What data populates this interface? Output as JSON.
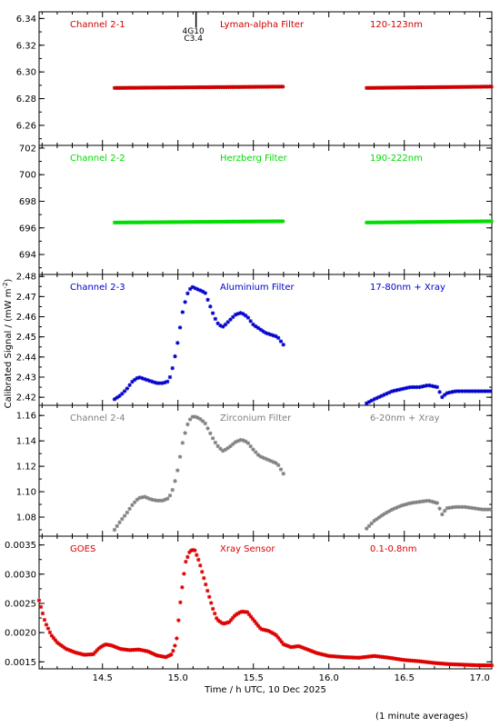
{
  "chart_data": {
    "type": "scatter",
    "xlabel": "Time / h UTC, 10 Dec 2025",
    "ylabel": "Calibrated Signal / (mW m",
    "ylabel_sup": "-2",
    "ylabel_end": ")",
    "xlim": [
      14.08,
      17.08
    ],
    "xticks": [
      14.5,
      15.0,
      15.5,
      16.0,
      16.5,
      17.0
    ],
    "xtick_labels": [
      "14.5",
      "15.0",
      "15.5",
      "16.0",
      "16.5",
      "17.0"
    ],
    "footnote": "(1 minute averages)",
    "annotation": {
      "x": 15.12,
      "label1": "4G10",
      "label2": "C3.4"
    },
    "panels": [
      {
        "channel": "Channel 2-1",
        "filter": "Lyman-alpha Filter",
        "band": "120-123nm",
        "color": "#cc0000",
        "ylim": [
          6.245,
          6.345
        ],
        "yticks": [
          6.26,
          6.28,
          6.3,
          6.32,
          6.34
        ],
        "ytick_labels": [
          "6.26",
          "6.28",
          "6.30",
          "6.32",
          "6.34"
        ],
        "segments": [
          {
            "x": [
              14.58,
              15.7
            ],
            "y": [
              6.288,
              6.289
            ]
          },
          {
            "x": [
              16.25,
              17.08
            ],
            "y": [
              6.288,
              6.289
            ]
          }
        ]
      },
      {
        "channel": "Channel 2-2",
        "filter": "Herzberg Filter",
        "band": "190-222nm",
        "color": "#00dd00",
        "ylim": [
          692.5,
          702.2
        ],
        "yticks": [
          694,
          696,
          698,
          700,
          702
        ],
        "ytick_labels": [
          "694",
          "696",
          "698",
          "700",
          "702"
        ],
        "segments": [
          {
            "x": [
              14.58,
              15.7
            ],
            "y": [
              696.4,
              696.5
            ]
          },
          {
            "x": [
              16.25,
              17.08
            ],
            "y": [
              696.4,
              696.5
            ]
          }
        ]
      },
      {
        "channel": "Channel 2-3",
        "filter": "Aluminium Filter",
        "band": "17-80nm + Xray",
        "color": "#0000cc",
        "ylim": [
          2.416,
          2.481
        ],
        "yticks": [
          2.42,
          2.43,
          2.44,
          2.45,
          2.46,
          2.47,
          2.48
        ],
        "ytick_labels": [
          "2.42",
          "2.43",
          "2.44",
          "2.45",
          "2.46",
          "2.47",
          "2.48"
        ],
        "curve": [
          [
            14.58,
            2.419
          ],
          [
            14.62,
            2.421
          ],
          [
            14.66,
            2.424
          ],
          [
            14.7,
            2.428
          ],
          [
            14.74,
            2.43
          ],
          [
            14.78,
            2.429
          ],
          [
            14.82,
            2.428
          ],
          [
            14.86,
            2.427
          ],
          [
            14.9,
            2.427
          ],
          [
            14.94,
            2.428
          ],
          [
            14.97,
            2.436
          ],
          [
            15.0,
            2.448
          ],
          [
            15.03,
            2.462
          ],
          [
            15.06,
            2.471
          ],
          [
            15.09,
            2.475
          ],
          [
            15.12,
            2.474
          ],
          [
            15.15,
            2.473
          ],
          [
            15.18,
            2.472
          ],
          [
            15.21,
            2.466
          ],
          [
            15.24,
            2.46
          ],
          [
            15.27,
            2.456
          ],
          [
            15.3,
            2.455
          ],
          [
            15.34,
            2.458
          ],
          [
            15.38,
            2.461
          ],
          [
            15.42,
            2.462
          ],
          [
            15.46,
            2.46
          ],
          [
            15.5,
            2.456
          ],
          [
            15.54,
            2.454
          ],
          [
            15.58,
            2.452
          ],
          [
            15.62,
            2.451
          ],
          [
            15.66,
            2.45
          ],
          [
            15.7,
            2.446
          ]
        ],
        "curve2": [
          [
            16.25,
            2.417
          ],
          [
            16.3,
            2.419
          ],
          [
            16.36,
            2.421
          ],
          [
            16.42,
            2.423
          ],
          [
            16.48,
            2.424
          ],
          [
            16.54,
            2.425
          ],
          [
            16.6,
            2.425
          ],
          [
            16.66,
            2.426
          ],
          [
            16.72,
            2.425
          ],
          [
            16.75,
            2.42
          ],
          [
            16.78,
            2.422
          ],
          [
            16.84,
            2.423
          ],
          [
            16.9,
            2.423
          ],
          [
            16.96,
            2.423
          ],
          [
            17.02,
            2.423
          ],
          [
            17.08,
            2.423
          ]
        ]
      },
      {
        "channel": "Channel 2-4",
        "filter": "Zirconium Filter",
        "band": "6-20nm + Xray",
        "color": "#808080",
        "ylim": [
          1.065,
          1.168
        ],
        "yticks": [
          1.08,
          1.1,
          1.12,
          1.14,
          1.16
        ],
        "ytick_labels": [
          "1.08",
          "1.10",
          "1.12",
          "1.14",
          "1.16"
        ],
        "curve": [
          [
            14.58,
            1.07
          ],
          [
            14.62,
            1.077
          ],
          [
            14.66,
            1.083
          ],
          [
            14.7,
            1.09
          ],
          [
            14.74,
            1.095
          ],
          [
            14.78,
            1.096
          ],
          [
            14.82,
            1.094
          ],
          [
            14.86,
            1.093
          ],
          [
            14.9,
            1.093
          ],
          [
            14.94,
            1.095
          ],
          [
            14.97,
            1.103
          ],
          [
            15.0,
            1.118
          ],
          [
            15.03,
            1.138
          ],
          [
            15.06,
            1.152
          ],
          [
            15.09,
            1.159
          ],
          [
            15.12,
            1.159
          ],
          [
            15.15,
            1.157
          ],
          [
            15.18,
            1.154
          ],
          [
            15.21,
            1.147
          ],
          [
            15.24,
            1.14
          ],
          [
            15.27,
            1.135
          ],
          [
            15.3,
            1.132
          ],
          [
            15.34,
            1.135
          ],
          [
            15.38,
            1.139
          ],
          [
            15.42,
            1.141
          ],
          [
            15.46,
            1.139
          ],
          [
            15.5,
            1.133
          ],
          [
            15.54,
            1.128
          ],
          [
            15.58,
            1.126
          ],
          [
            15.62,
            1.124
          ],
          [
            15.66,
            1.122
          ],
          [
            15.7,
            1.114
          ]
        ],
        "curve2": [
          [
            16.25,
            1.071
          ],
          [
            16.3,
            1.077
          ],
          [
            16.36,
            1.082
          ],
          [
            16.42,
            1.086
          ],
          [
            16.48,
            1.089
          ],
          [
            16.54,
            1.091
          ],
          [
            16.6,
            1.092
          ],
          [
            16.66,
            1.093
          ],
          [
            16.72,
            1.091
          ],
          [
            16.75,
            1.082
          ],
          [
            16.78,
            1.087
          ],
          [
            16.84,
            1.088
          ],
          [
            16.9,
            1.088
          ],
          [
            16.96,
            1.087
          ],
          [
            17.02,
            1.086
          ],
          [
            17.08,
            1.086
          ]
        ]
      },
      {
        "channel": "GOES",
        "filter": "Xray Sensor",
        "band": "0.1-0.8nm",
        "color": "#dd0000",
        "ylim": [
          0.00138,
          0.00365
        ],
        "yticks": [
          0.0015,
          0.002,
          0.0025,
          0.003,
          0.0035
        ],
        "ytick_labels": [
          "0.0015",
          "0.0020",
          "0.0025",
          "0.0030",
          "0.0035"
        ],
        "curve": [
          [
            14.08,
            0.00255
          ],
          [
            14.12,
            0.00218
          ],
          [
            14.16,
            0.00196
          ],
          [
            14.2,
            0.00183
          ],
          [
            14.26,
            0.00172
          ],
          [
            14.32,
            0.00166
          ],
          [
            14.38,
            0.00162
          ],
          [
            14.44,
            0.00163
          ],
          [
            14.48,
            0.00174
          ],
          [
            14.52,
            0.0018
          ],
          [
            14.56,
            0.00178
          ],
          [
            14.62,
            0.00172
          ],
          [
            14.68,
            0.0017
          ],
          [
            14.74,
            0.00171
          ],
          [
            14.8,
            0.00168
          ],
          [
            14.86,
            0.00161
          ],
          [
            14.92,
            0.00158
          ],
          [
            14.96,
            0.00163
          ],
          [
            14.99,
            0.00185
          ],
          [
            15.02,
            0.00262
          ],
          [
            15.05,
            0.0032
          ],
          [
            15.08,
            0.0034
          ],
          [
            15.11,
            0.00342
          ],
          [
            15.14,
            0.00322
          ],
          [
            15.17,
            0.00295
          ],
          [
            15.2,
            0.00268
          ],
          [
            15.23,
            0.00242
          ],
          [
            15.26,
            0.00222
          ],
          [
            15.3,
            0.00215
          ],
          [
            15.34,
            0.00218
          ],
          [
            15.38,
            0.0023
          ],
          [
            15.42,
            0.00236
          ],
          [
            15.46,
            0.00235
          ],
          [
            15.5,
            0.00222
          ],
          [
            15.55,
            0.00206
          ],
          [
            15.6,
            0.00203
          ],
          [
            15.65,
            0.00196
          ],
          [
            15.7,
            0.0018
          ],
          [
            15.75,
            0.00175
          ],
          [
            15.8,
            0.00177
          ],
          [
            15.86,
            0.00171
          ],
          [
            15.92,
            0.00165
          ],
          [
            16.0,
            0.0016
          ],
          [
            16.1,
            0.00158
          ],
          [
            16.2,
            0.00157
          ],
          [
            16.3,
            0.0016
          ],
          [
            16.4,
            0.00157
          ],
          [
            16.5,
            0.00153
          ],
          [
            16.6,
            0.00151
          ],
          [
            16.7,
            0.00148
          ],
          [
            16.8,
            0.00146
          ],
          [
            16.9,
            0.00145
          ],
          [
            17.0,
            0.00144
          ],
          [
            17.08,
            0.00144
          ]
        ]
      }
    ]
  }
}
